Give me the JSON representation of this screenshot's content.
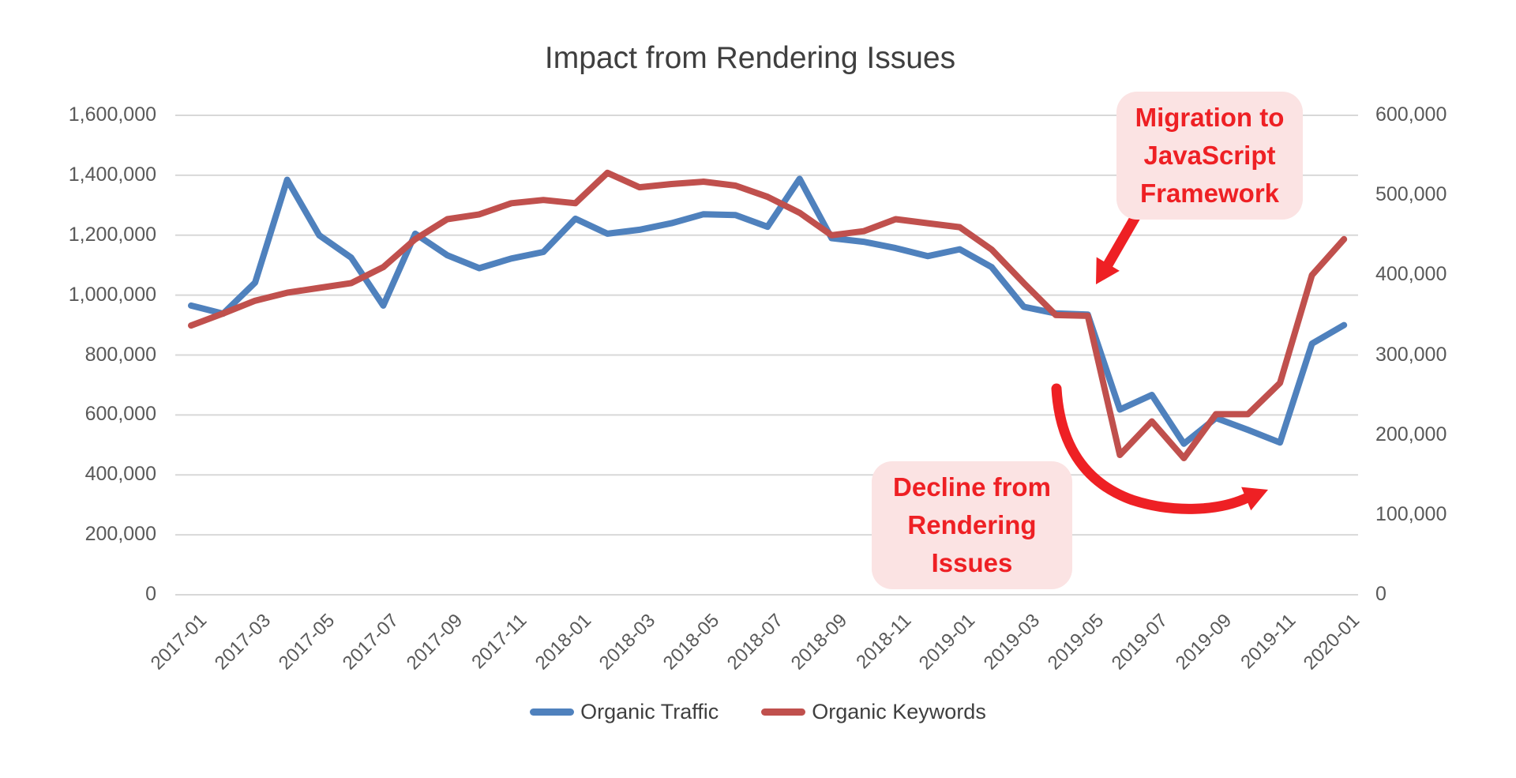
{
  "title": "Impact from Rendering Issues",
  "colors": {
    "traffic_line": "#4F81BD",
    "keywords_line": "#C0504D",
    "annotation_text": "#ee2024",
    "annotation_bg": "#fbe3e3",
    "gridline": "#d8d8d8",
    "axis_text": "#595959",
    "title_text": "#3f3f3f"
  },
  "annotations": {
    "migration": {
      "lines": [
        "Migration to",
        "JavaScript",
        "Framework"
      ]
    },
    "decline": {
      "lines": [
        "Decline from",
        "Rendering",
        "Issues"
      ]
    }
  },
  "legend": [
    {
      "label": "Organic Traffic",
      "color": "#4F81BD"
    },
    {
      "label": "Organic Keywords",
      "color": "#C0504D"
    }
  ],
  "chart_data": {
    "type": "line",
    "title": "Impact from Rendering Issues",
    "grid": true,
    "legend_position": "bottom",
    "x": [
      "2017-01",
      "2017-02",
      "2017-03",
      "2017-04",
      "2017-05",
      "2017-06",
      "2017-07",
      "2017-08",
      "2017-09",
      "2017-10",
      "2017-11",
      "2017-12",
      "2018-01",
      "2018-02",
      "2018-03",
      "2018-04",
      "2018-05",
      "2018-06",
      "2018-07",
      "2018-08",
      "2018-09",
      "2018-10",
      "2018-11",
      "2018-12",
      "2019-01",
      "2019-02",
      "2019-03",
      "2019-04",
      "2019-05",
      "2019-06",
      "2019-07",
      "2019-08",
      "2019-09",
      "2019-10",
      "2019-11",
      "2019-12",
      "2020-01"
    ],
    "x_tick_labels": [
      "2017-01",
      "2017-03",
      "2017-05",
      "2017-07",
      "2017-09",
      "2017-11",
      "2018-01",
      "2018-03",
      "2018-05",
      "2018-07",
      "2018-09",
      "2018-11",
      "2019-01",
      "2019-03",
      "2019-05",
      "2019-07",
      "2019-09",
      "2019-11",
      "2020-01"
    ],
    "left_axis": {
      "min": 0,
      "max": 1600000,
      "step": 200000,
      "tick_labels": [
        "0",
        "200,000",
        "400,000",
        "600,000",
        "800,000",
        "1,000,000",
        "1,200,000",
        "1,400,000",
        "1,600,000"
      ]
    },
    "right_axis": {
      "min": 0,
      "max": 600000,
      "step": 100000,
      "tick_labels": [
        "0",
        "100,000",
        "200,000",
        "300,000",
        "400,000",
        "500,000",
        "600,000"
      ]
    },
    "series": [
      {
        "name": "Organic Traffic",
        "axis": "left",
        "color": "#4F81BD",
        "values": [
          965000,
          938000,
          1042000,
          1385000,
          1200000,
          1125000,
          965000,
          1205000,
          1133000,
          1090000,
          1122000,
          1144000,
          1255000,
          1205000,
          1218000,
          1240000,
          1270000,
          1267000,
          1228000,
          1388000,
          1190000,
          1178000,
          1157000,
          1130000,
          1153000,
          1093000,
          961000,
          939000,
          935000,
          618000,
          667000,
          504000,
          590000,
          550000,
          508000,
          838000,
          900000
        ]
      },
      {
        "name": "Organic Keywords",
        "axis": "right",
        "color": "#C0504D",
        "values": [
          337000,
          352000,
          368000,
          378000,
          384000,
          390000,
          410000,
          445000,
          470000,
          476000,
          490000,
          494000,
          490000,
          528000,
          510000,
          514000,
          517000,
          512000,
          498000,
          478000,
          450000,
          455000,
          470000,
          465000,
          460000,
          432000,
          390000,
          350000,
          349000,
          175000,
          217000,
          171000,
          226000,
          226000,
          265000,
          400000,
          445000
        ]
      }
    ]
  }
}
